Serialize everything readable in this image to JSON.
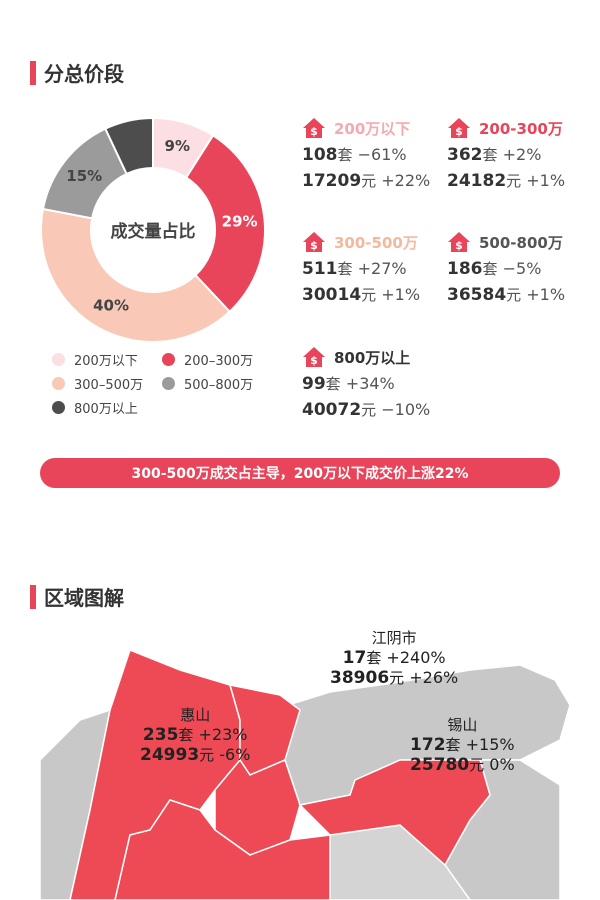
{
  "section1": {
    "title": "分总价段"
  },
  "chart_data": {
    "type": "pie",
    "title": "",
    "center_label": "成交量占比",
    "categories": [
      "200万以下",
      "200-300万",
      "300-500万",
      "500-800万",
      "800万以上"
    ],
    "values": [
      9,
      29,
      40,
      15,
      7
    ],
    "value_labels": [
      "9%",
      "29%",
      "40%",
      "15%",
      ""
    ],
    "colors": [
      "#fbdfe2",
      "#e8455a",
      "#f9c8b6",
      "#9b9b9b",
      "#4d4d4d"
    ],
    "legend_labels": [
      "200万以下",
      "200–300万",
      "300–500万",
      "500–800万",
      "800万以上"
    ],
    "legend_position": "bottom"
  },
  "stats": [
    {
      "label": "200万以下",
      "label_color": "#f5a9b0",
      "count": "108",
      "count_unit": "套",
      "count_change": "−61%",
      "price": "17209",
      "price_unit": "元",
      "price_change": "+22%"
    },
    {
      "label": "200-300万",
      "label_color": "#e8455a",
      "count": "362",
      "count_unit": "套",
      "count_change": "+2%",
      "price": "24182",
      "price_unit": "元",
      "price_change": "+1%"
    },
    {
      "label": "300-500万",
      "label_color": "#f5b89e",
      "count": "511",
      "count_unit": "套",
      "count_change": "+27%",
      "price": "30014",
      "price_unit": "元",
      "price_change": "+1%"
    },
    {
      "label": "500-800万",
      "label_color": "#555555",
      "count": "186",
      "count_unit": "套",
      "count_change": "−5%",
      "price": "36584",
      "price_unit": "元",
      "price_change": "+1%"
    },
    {
      "label": "800万以上",
      "label_color": "#333333",
      "count": "99",
      "count_unit": "套",
      "count_change": "+34%",
      "price": "40072",
      "price_unit": "元",
      "price_change": "−10%"
    }
  ],
  "icon_name": "house-dollar-icon",
  "banner": {
    "text": "300-500万成交占主导，200万以下成交价上涨22%"
  },
  "section2": {
    "title": "区域图解"
  },
  "regions": [
    {
      "name": "江阴市",
      "count": "17",
      "count_unit": "套",
      "count_change": "+240%",
      "price": "38906",
      "price_unit": "元",
      "price_change": "+26%"
    },
    {
      "name": "惠山",
      "count": "235",
      "count_unit": "套",
      "count_change": "+23%",
      "price": "24993",
      "price_unit": "元",
      "price_change": "-6%"
    },
    {
      "name": "锡山",
      "count": "172",
      "count_unit": "套",
      "count_change": "+15%",
      "price": "25780",
      "price_unit": "元",
      "price_change": "0%"
    }
  ],
  "colors": {
    "accent": "#e8455a",
    "map_highlight": "#ee4a55",
    "map_gray": "#c8c8c8"
  }
}
